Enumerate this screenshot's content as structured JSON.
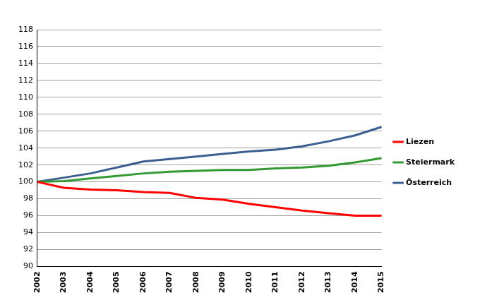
{
  "chart_data": {
    "type": "line",
    "categories": [
      "2002",
      "2003",
      "2004",
      "2005",
      "2006",
      "2007",
      "2008",
      "2009",
      "2010",
      "2011",
      "2012",
      "2013",
      "2014",
      "2015"
    ],
    "series": [
      {
        "name": "Liezen",
        "color": "#ff0000",
        "values": [
          100,
          99.3,
          99.1,
          99.0,
          98.8,
          98.7,
          98.1,
          97.9,
          97.4,
          97.0,
          96.6,
          96.3,
          96.0,
          96.0
        ]
      },
      {
        "name": "Steiermark",
        "color": "#339933",
        "values": [
          100,
          100.1,
          100.4,
          100.7,
          101.0,
          101.2,
          101.3,
          101.4,
          101.4,
          101.6,
          101.7,
          101.9,
          102.3,
          102.8
        ]
      },
      {
        "name": "Österreich",
        "color": "#3b5f91",
        "values": [
          100,
          100.5,
          101.0,
          101.7,
          102.4,
          102.7,
          103.0,
          103.3,
          103.6,
          103.8,
          104.2,
          104.8,
          105.5,
          106.5
        ]
      }
    ],
    "ylim": [
      90,
      118
    ],
    "yticks": [
      90,
      92,
      94,
      96,
      98,
      100,
      102,
      104,
      106,
      108,
      110,
      112,
      114,
      116,
      118
    ],
    "grid": true,
    "legend": "right"
  }
}
